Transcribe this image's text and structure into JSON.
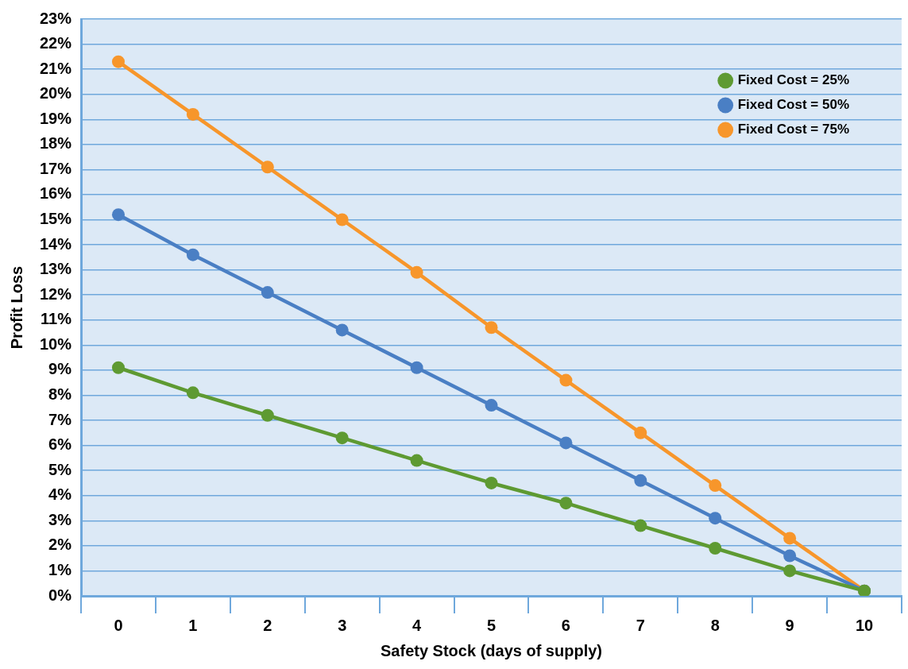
{
  "chart_data": {
    "type": "line",
    "xlabel": "Safety Stock (days of supply)",
    "ylabel": "Profit Loss",
    "categories": [
      "0",
      "1",
      "2",
      "3",
      "4",
      "5",
      "6",
      "7",
      "8",
      "9",
      "10"
    ],
    "series": [
      {
        "name": "Fixed Cost = 25%",
        "color": "#5e9a32",
        "values": [
          9.1,
          8.1,
          7.2,
          6.3,
          5.4,
          4.5,
          3.7,
          2.8,
          1.9,
          1.0,
          0.2
        ]
      },
      {
        "name": "Fixed Cost = 50%",
        "color": "#4a7fc4",
        "values": [
          15.2,
          13.6,
          12.1,
          10.6,
          9.1,
          7.6,
          6.1,
          4.6,
          3.1,
          1.6,
          0.2
        ]
      },
      {
        "name": "Fixed Cost = 75%",
        "color": "#f7962b",
        "values": [
          21.3,
          19.2,
          17.1,
          15.0,
          12.9,
          10.7,
          8.6,
          6.5,
          4.4,
          2.3,
          0.2
        ]
      }
    ],
    "ylim": [
      0,
      23
    ],
    "yticks": [
      {
        "value": 0,
        "label": "0%"
      },
      {
        "value": 1,
        "label": "1%"
      },
      {
        "value": 2,
        "label": "2%"
      },
      {
        "value": 3,
        "label": "3%"
      },
      {
        "value": 4,
        "label": "4%"
      },
      {
        "value": 5,
        "label": "5%"
      },
      {
        "value": 6,
        "label": "6%"
      },
      {
        "value": 7,
        "label": "7%"
      },
      {
        "value": 8,
        "label": "8%"
      },
      {
        "value": 9,
        "label": "9%"
      },
      {
        "value": 10,
        "label": "10%"
      },
      {
        "value": 11,
        "label": "11%"
      },
      {
        "value": 12,
        "label": "12%"
      },
      {
        "value": 13,
        "label": "13%"
      },
      {
        "value": 14,
        "label": "14%"
      },
      {
        "value": 15,
        "label": "15%"
      },
      {
        "value": 16,
        "label": "16%"
      },
      {
        "value": 17,
        "label": "17%"
      },
      {
        "value": 18,
        "label": "18%"
      },
      {
        "value": 19,
        "label": "19%"
      },
      {
        "value": 20,
        "label": "20%"
      },
      {
        "value": 21,
        "label": "21%"
      },
      {
        "value": 22,
        "label": "22%"
      },
      {
        "value": 23,
        "label": "23%"
      }
    ],
    "grid": "y",
    "legend": "top right",
    "marker": "circle",
    "line_style": "solid"
  }
}
